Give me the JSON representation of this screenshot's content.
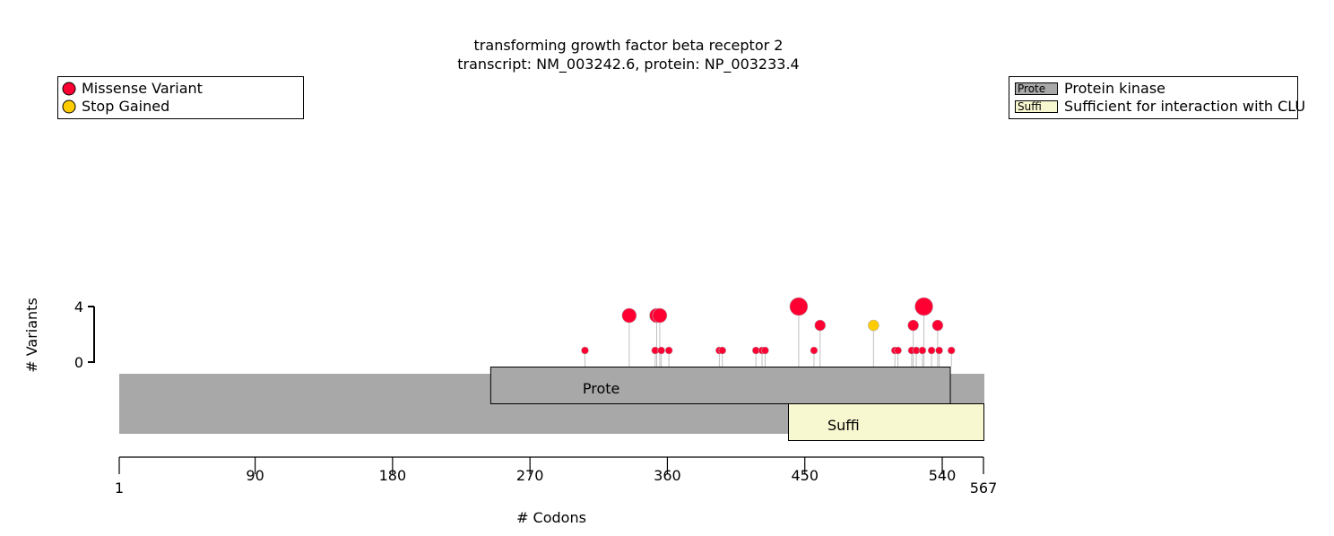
{
  "chart_data": {
    "type": "lollipop",
    "title_line1": "transforming growth factor beta receptor 2",
    "title_line2": "transcript: NM_003242.6, protein: NP_003233.4",
    "xlabel": "# Codons",
    "ylabel": "# Variants",
    "xlim": [
      1,
      567
    ],
    "ylim": [
      0,
      4
    ],
    "x_ticks": [
      1,
      90,
      180,
      270,
      360,
      450,
      540,
      567
    ],
    "y_ticks": [
      0,
      4
    ],
    "variant_legend": [
      {
        "label": "Missense Variant",
        "color": "#ff0033"
      },
      {
        "label": "Stop Gained",
        "color": "#ffcc00"
      }
    ],
    "domain_legend": [
      {
        "short": "Prote",
        "label": "Protein kinase",
        "color": "#a8a8a8"
      },
      {
        "short": "Suffi",
        "label": "Sufficient for interaction with CLU",
        "color": "#f8f8d0"
      }
    ],
    "protein_length": 567,
    "domains": [
      {
        "short": "Prote",
        "name": "Protein kinase",
        "start": 244,
        "end": 545,
        "track": "upper",
        "color": "#a8a8a8"
      },
      {
        "short": "Suffi",
        "name": "Sufficient for interaction with CLU",
        "start": 439,
        "end": 567,
        "track": "lower",
        "color": "#f8f8d0"
      }
    ],
    "variants": [
      {
        "pos": 306,
        "count": 1,
        "type": "Missense Variant"
      },
      {
        "pos": 335,
        "count": 3,
        "type": "Missense Variant"
      },
      {
        "pos": 352,
        "count": 1,
        "type": "Missense Variant"
      },
      {
        "pos": 353,
        "count": 3,
        "type": "Missense Variant"
      },
      {
        "pos": 355,
        "count": 3,
        "type": "Missense Variant"
      },
      {
        "pos": 356,
        "count": 1,
        "type": "Missense Variant"
      },
      {
        "pos": 361,
        "count": 1,
        "type": "Missense Variant"
      },
      {
        "pos": 394,
        "count": 1,
        "type": "Missense Variant"
      },
      {
        "pos": 396,
        "count": 1,
        "type": "Missense Variant"
      },
      {
        "pos": 418,
        "count": 1,
        "type": "Missense Variant"
      },
      {
        "pos": 422,
        "count": 1,
        "type": "Missense Variant"
      },
      {
        "pos": 424,
        "count": 1,
        "type": "Missense Variant"
      },
      {
        "pos": 446,
        "count": 4,
        "type": "Missense Variant"
      },
      {
        "pos": 456,
        "count": 1,
        "type": "Missense Variant"
      },
      {
        "pos": 460,
        "count": 2,
        "type": "Missense Variant"
      },
      {
        "pos": 495,
        "count": 2,
        "type": "Stop Gained"
      },
      {
        "pos": 509,
        "count": 1,
        "type": "Missense Variant"
      },
      {
        "pos": 511,
        "count": 1,
        "type": "Missense Variant"
      },
      {
        "pos": 520,
        "count": 1,
        "type": "Missense Variant"
      },
      {
        "pos": 521,
        "count": 2,
        "type": "Missense Variant"
      },
      {
        "pos": 523,
        "count": 1,
        "type": "Missense Variant"
      },
      {
        "pos": 527,
        "count": 1,
        "type": "Missense Variant"
      },
      {
        "pos": 528,
        "count": 4,
        "type": "Missense Variant"
      },
      {
        "pos": 533,
        "count": 1,
        "type": "Missense Variant"
      },
      {
        "pos": 537,
        "count": 2,
        "type": "Missense Variant"
      },
      {
        "pos": 538,
        "count": 1,
        "type": "Missense Variant"
      },
      {
        "pos": 546,
        "count": 1,
        "type": "Missense Variant"
      }
    ]
  }
}
